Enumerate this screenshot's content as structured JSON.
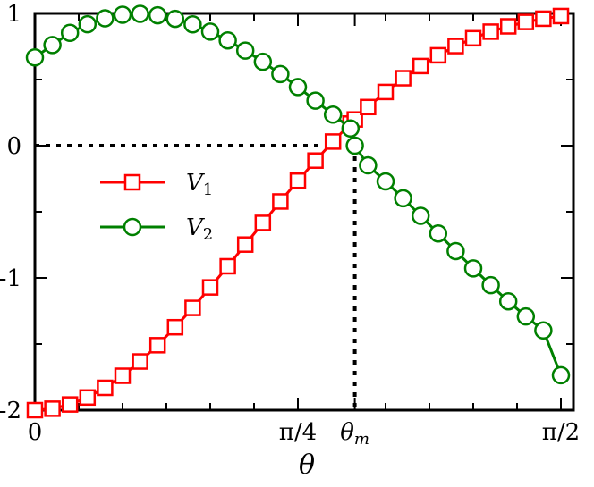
{
  "chart_data": {
    "type": "line",
    "xlabel": "θ",
    "ylabel": "",
    "xlim": [
      0,
      1.5708
    ],
    "ylim": [
      -2,
      1
    ],
    "x_ticks": [
      {
        "value": 0,
        "label": "0"
      },
      {
        "value": 0.7854,
        "label": "π/4"
      },
      {
        "value": 0.9553,
        "label": "θ",
        "sub": "m"
      },
      {
        "value": 1.5708,
        "label": "π/2"
      }
    ],
    "x_minor_ticks": [
      0.1309,
      0.2618,
      0.3927,
      0.5236,
      0.6545,
      1.0472,
      1.1781,
      1.309,
      1.4399
    ],
    "y_ticks": [
      {
        "value": 1,
        "label": "1"
      },
      {
        "value": 0,
        "label": "0"
      },
      {
        "value": -1,
        "label": "-1"
      },
      {
        "value": -2,
        "label": "-2"
      }
    ],
    "y_minor_ticks": [
      0.5,
      -0.5,
      -1.5
    ],
    "reference_point": {
      "x": 0.9553,
      "y": 0
    },
    "x": [
      0,
      0.0524,
      0.1047,
      0.1571,
      0.2094,
      0.2618,
      0.3142,
      0.3665,
      0.4189,
      0.4712,
      0.5236,
      0.576,
      0.6283,
      0.6807,
      0.733,
      0.7854,
      0.8378,
      0.8901,
      0.9425,
      0.9553,
      0.9948,
      1.0472,
      1.0996,
      1.1519,
      1.2043,
      1.2566,
      1.309,
      1.3614,
      1.4137,
      1.4661,
      1.5184,
      1.5708
    ],
    "series": [
      {
        "name": "V",
        "sub": "1",
        "color": "#ff0000",
        "marker": "square",
        "values": [
          -2.0,
          -1.989,
          -1.957,
          -1.904,
          -1.831,
          -1.74,
          -1.632,
          -1.509,
          -1.373,
          -1.227,
          -1.072,
          -0.912,
          -0.748,
          -0.584,
          -0.422,
          -0.265,
          -0.113,
          0.031,
          0.167,
          0.198,
          0.292,
          0.406,
          0.51,
          0.602,
          0.683,
          0.753,
          0.812,
          0.862,
          0.902,
          0.935,
          0.96,
          0.98
        ]
      },
      {
        "name": "V",
        "sub": "2",
        "color": "#008000",
        "marker": "circle",
        "values": [
          0.667,
          0.761,
          0.853,
          0.918,
          0.963,
          0.99,
          0.997,
          0.986,
          0.959,
          0.917,
          0.862,
          0.796,
          0.719,
          0.634,
          0.541,
          0.443,
          0.34,
          0.235,
          0.13,
          0.0,
          -0.149,
          -0.27,
          -0.398,
          -0.53,
          -0.664,
          -0.797,
          -0.928,
          -1.055,
          -1.177,
          -1.291,
          -1.397,
          -1.736
        ]
      }
    ],
    "legend": {
      "position": "center-left"
    }
  }
}
